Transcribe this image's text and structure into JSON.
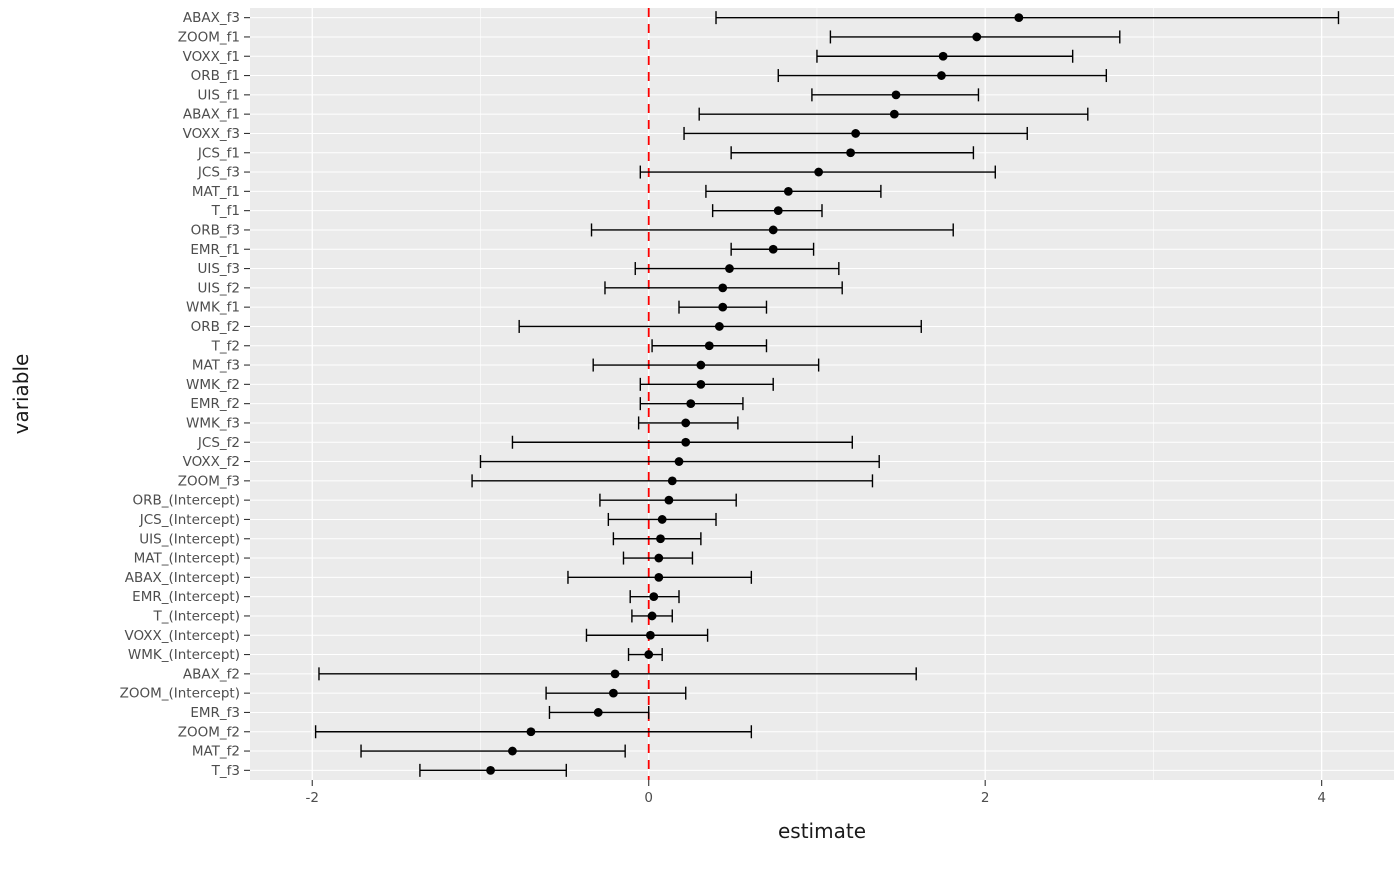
{
  "chart_data": {
    "type": "scatter",
    "subtype": "forest-plot-horizontal-errorbars",
    "title": "",
    "xlabel": "estimate",
    "ylabel": "variable",
    "x_ticks": [
      -2,
      0,
      2,
      4
    ],
    "x_minor_ticks": [
      -1,
      1,
      3
    ],
    "xlim": [
      -2.37,
      4.43
    ],
    "grid": true,
    "legend": "none",
    "reference_line": {
      "x": 0,
      "color": "#FF0000",
      "style": "dashed"
    },
    "points": [
      {
        "variable": "ABAX_f3",
        "estimate": 2.2,
        "lower": 0.4,
        "upper": 4.1
      },
      {
        "variable": "ZOOM_f1",
        "estimate": 1.95,
        "lower": 1.08,
        "upper": 2.8
      },
      {
        "variable": "VOXX_f1",
        "estimate": 1.75,
        "lower": 1.0,
        "upper": 2.52
      },
      {
        "variable": "ORB_f1",
        "estimate": 1.74,
        "lower": 0.77,
        "upper": 2.72
      },
      {
        "variable": "UIS_f1",
        "estimate": 1.47,
        "lower": 0.97,
        "upper": 1.96
      },
      {
        "variable": "ABAX_f1",
        "estimate": 1.46,
        "lower": 0.3,
        "upper": 2.61
      },
      {
        "variable": "VOXX_f3",
        "estimate": 1.23,
        "lower": 0.21,
        "upper": 2.25
      },
      {
        "variable": "JCS_f1",
        "estimate": 1.2,
        "lower": 0.49,
        "upper": 1.93
      },
      {
        "variable": "JCS_f3",
        "estimate": 1.01,
        "lower": -0.05,
        "upper": 2.06
      },
      {
        "variable": "MAT_f1",
        "estimate": 0.83,
        "lower": 0.34,
        "upper": 1.38
      },
      {
        "variable": "T_f1",
        "estimate": 0.77,
        "lower": 0.38,
        "upper": 1.03
      },
      {
        "variable": "ORB_f3",
        "estimate": 0.74,
        "lower": -0.34,
        "upper": 1.81
      },
      {
        "variable": "EMR_f1",
        "estimate": 0.74,
        "lower": 0.49,
        "upper": 0.98
      },
      {
        "variable": "UIS_f3",
        "estimate": 0.48,
        "lower": -0.08,
        "upper": 1.13
      },
      {
        "variable": "UIS_f2",
        "estimate": 0.44,
        "lower": -0.26,
        "upper": 1.15
      },
      {
        "variable": "WMK_f1",
        "estimate": 0.44,
        "lower": 0.18,
        "upper": 0.7
      },
      {
        "variable": "ORB_f2",
        "estimate": 0.42,
        "lower": -0.77,
        "upper": 1.62
      },
      {
        "variable": "T_f2",
        "estimate": 0.36,
        "lower": 0.02,
        "upper": 0.7
      },
      {
        "variable": "MAT_f3",
        "estimate": 0.31,
        "lower": -0.33,
        "upper": 1.01
      },
      {
        "variable": "WMK_f2",
        "estimate": 0.31,
        "lower": -0.05,
        "upper": 0.74
      },
      {
        "variable": "EMR_f2",
        "estimate": 0.25,
        "lower": -0.05,
        "upper": 0.56
      },
      {
        "variable": "WMK_f3",
        "estimate": 0.22,
        "lower": -0.06,
        "upper": 0.53
      },
      {
        "variable": "JCS_f2",
        "estimate": 0.22,
        "lower": -0.81,
        "upper": 1.21
      },
      {
        "variable": "VOXX_f2",
        "estimate": 0.18,
        "lower": -1.0,
        "upper": 1.37
      },
      {
        "variable": "ZOOM_f3",
        "estimate": 0.14,
        "lower": -1.05,
        "upper": 1.33
      },
      {
        "variable": "ORB_(Intercept)",
        "estimate": 0.12,
        "lower": -0.29,
        "upper": 0.52
      },
      {
        "variable": "JCS_(Intercept)",
        "estimate": 0.08,
        "lower": -0.24,
        "upper": 0.4
      },
      {
        "variable": "UIS_(Intercept)",
        "estimate": 0.07,
        "lower": -0.21,
        "upper": 0.31
      },
      {
        "variable": "MAT_(Intercept)",
        "estimate": 0.06,
        "lower": -0.15,
        "upper": 0.26
      },
      {
        "variable": "ABAX_(Intercept)",
        "estimate": 0.06,
        "lower": -0.48,
        "upper": 0.61
      },
      {
        "variable": "EMR_(Intercept)",
        "estimate": 0.03,
        "lower": -0.11,
        "upper": 0.18
      },
      {
        "variable": "T_(Intercept)",
        "estimate": 0.02,
        "lower": -0.1,
        "upper": 0.14
      },
      {
        "variable": "VOXX_(Intercept)",
        "estimate": 0.01,
        "lower": -0.37,
        "upper": 0.35
      },
      {
        "variable": "WMK_(Intercept)",
        "estimate": 0.0,
        "lower": -0.12,
        "upper": 0.08
      },
      {
        "variable": "ABAX_f2",
        "estimate": -0.2,
        "lower": -1.96,
        "upper": 1.59
      },
      {
        "variable": "ZOOM_(Intercept)",
        "estimate": -0.21,
        "lower": -0.61,
        "upper": 0.22
      },
      {
        "variable": "EMR_f3",
        "estimate": -0.3,
        "lower": -0.59,
        "upper": 0.0
      },
      {
        "variable": "ZOOM_f2",
        "estimate": -0.7,
        "lower": -1.98,
        "upper": 0.61
      },
      {
        "variable": "MAT_f2",
        "estimate": -0.81,
        "lower": -1.71,
        "upper": -0.14
      },
      {
        "variable": "T_f3",
        "estimate": -0.94,
        "lower": -1.36,
        "upper": -0.49
      }
    ]
  },
  "style": {
    "panel_bg": "#EBEBEB",
    "grid_color": "#FFFFFF",
    "axis_text_color": "#4D4D4D",
    "axis_title_color": "#1a1a1a",
    "data_color": "#000000",
    "ref_line_color": "#FF0000",
    "tick_color": "#333333"
  }
}
